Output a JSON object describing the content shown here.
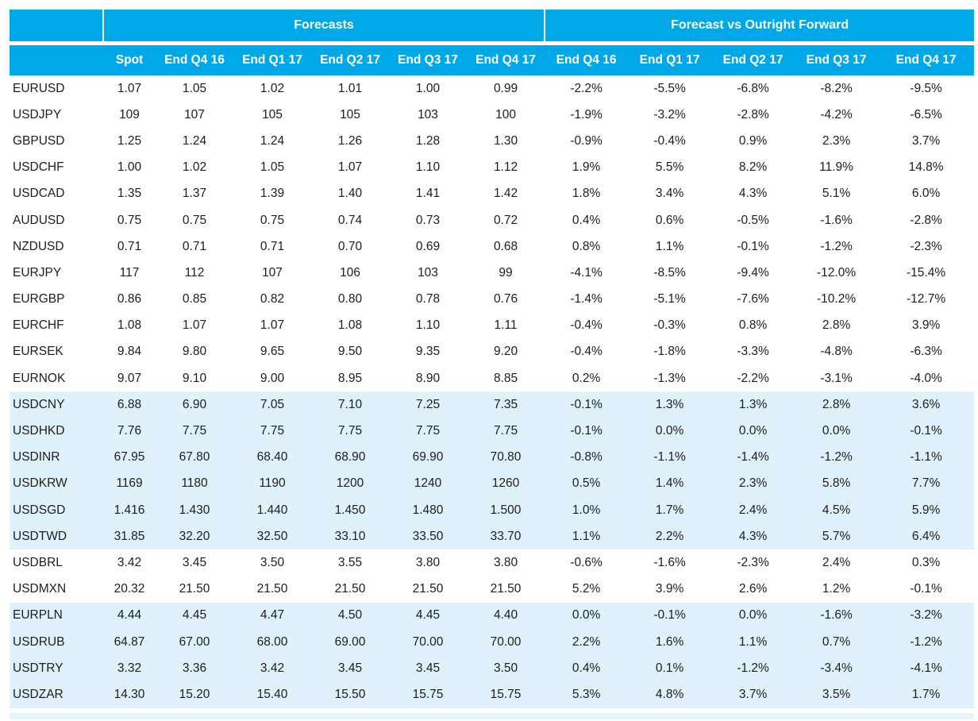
{
  "table": {
    "group_headers": [
      {
        "label": "Forecasts",
        "span": 6
      },
      {
        "label": "Forecast vs Outright Forward",
        "span": 5
      }
    ],
    "column_headers": {
      "pair": "",
      "forecasts": [
        "Spot",
        "End Q4 16",
        "End Q1 17",
        "End Q2 17",
        "End Q3 17",
        "End Q4 17"
      ],
      "vs_forward": [
        "End Q4 16",
        "End Q1 17",
        "End Q2 17",
        "End Q3 17",
        "End Q4 17"
      ]
    },
    "rows": [
      {
        "pair": "EURUSD",
        "forecasts": [
          "1.07",
          "1.05",
          "1.02",
          "1.01",
          "1.00",
          "0.99"
        ],
        "vs_forward": [
          "-2.2%",
          "-5.5%",
          "-6.8%",
          "-8.2%",
          "-9.5%"
        ],
        "highlight": false
      },
      {
        "pair": "USDJPY",
        "forecasts": [
          "109",
          "107",
          "105",
          "105",
          "103",
          "100"
        ],
        "vs_forward": [
          "-1.9%",
          "-3.2%",
          "-2.8%",
          "-4.2%",
          "-6.5%"
        ],
        "highlight": false
      },
      {
        "pair": "GBPUSD",
        "forecasts": [
          "1.25",
          "1.24",
          "1.24",
          "1.26",
          "1.28",
          "1.30"
        ],
        "vs_forward": [
          "-0.9%",
          "-0.4%",
          "0.9%",
          "2.3%",
          "3.7%"
        ],
        "highlight": false
      },
      {
        "pair": "USDCHF",
        "forecasts": [
          "1.00",
          "1.02",
          "1.05",
          "1.07",
          "1.10",
          "1.12"
        ],
        "vs_forward": [
          "1.9%",
          "5.5%",
          "8.2%",
          "11.9%",
          "14.8%"
        ],
        "highlight": false
      },
      {
        "pair": "USDCAD",
        "forecasts": [
          "1.35",
          "1.37",
          "1.39",
          "1.40",
          "1.41",
          "1.42"
        ],
        "vs_forward": [
          "1.8%",
          "3.4%",
          "4.3%",
          "5.1%",
          "6.0%"
        ],
        "highlight": false
      },
      {
        "pair": "AUDUSD",
        "forecasts": [
          "0.75",
          "0.75",
          "0.75",
          "0.74",
          "0.73",
          "0.72"
        ],
        "vs_forward": [
          "0.4%",
          "0.6%",
          "-0.5%",
          "-1.6%",
          "-2.8%"
        ],
        "highlight": false
      },
      {
        "pair": "NZDUSD",
        "forecasts": [
          "0.71",
          "0.71",
          "0.71",
          "0.70",
          "0.69",
          "0.68"
        ],
        "vs_forward": [
          "0.8%",
          "1.1%",
          "-0.1%",
          "-1.2%",
          "-2.3%"
        ],
        "highlight": false
      },
      {
        "pair": "EURJPY",
        "forecasts": [
          "117",
          "112",
          "107",
          "106",
          "103",
          "99"
        ],
        "vs_forward": [
          "-4.1%",
          "-8.5%",
          "-9.4%",
          "-12.0%",
          "-15.4%"
        ],
        "highlight": false
      },
      {
        "pair": "EURGBP",
        "forecasts": [
          "0.86",
          "0.85",
          "0.82",
          "0.80",
          "0.78",
          "0.76"
        ],
        "vs_forward": [
          "-1.4%",
          "-5.1%",
          "-7.6%",
          "-10.2%",
          "-12.7%"
        ],
        "highlight": false
      },
      {
        "pair": "EURCHF",
        "forecasts": [
          "1.08",
          "1.07",
          "1.07",
          "1.08",
          "1.10",
          "1.11"
        ],
        "vs_forward": [
          "-0.4%",
          "-0.3%",
          "0.8%",
          "2.8%",
          "3.9%"
        ],
        "highlight": false
      },
      {
        "pair": "EURSEK",
        "forecasts": [
          "9.84",
          "9.80",
          "9.65",
          "9.50",
          "9.35",
          "9.20"
        ],
        "vs_forward": [
          "-0.4%",
          "-1.8%",
          "-3.3%",
          "-4.8%",
          "-6.3%"
        ],
        "highlight": false
      },
      {
        "pair": "EURNOK",
        "forecasts": [
          "9.07",
          "9.10",
          "9.00",
          "8.95",
          "8.90",
          "8.85"
        ],
        "vs_forward": [
          "0.2%",
          "-1.3%",
          "-2.2%",
          "-3.1%",
          "-4.0%"
        ],
        "highlight": false
      },
      {
        "pair": "USDCNY",
        "forecasts": [
          "6.88",
          "6.90",
          "7.05",
          "7.10",
          "7.25",
          "7.35"
        ],
        "vs_forward": [
          "-0.1%",
          "1.3%",
          "1.3%",
          "2.8%",
          "3.6%"
        ],
        "highlight": true
      },
      {
        "pair": "USDHKD",
        "forecasts": [
          "7.76",
          "7.75",
          "7.75",
          "7.75",
          "7.75",
          "7.75"
        ],
        "vs_forward": [
          "-0.1%",
          "0.0%",
          "0.0%",
          "0.0%",
          "-0.1%"
        ],
        "highlight": true
      },
      {
        "pair": "USDINR",
        "forecasts": [
          "67.95",
          "67.80",
          "68.40",
          "68.90",
          "69.90",
          "70.80"
        ],
        "vs_forward": [
          "-0.8%",
          "-1.1%",
          "-1.4%",
          "-1.2%",
          "-1.1%"
        ],
        "highlight": true
      },
      {
        "pair": "USDKRW",
        "forecasts": [
          "1169",
          "1180",
          "1190",
          "1200",
          "1240",
          "1260"
        ],
        "vs_forward": [
          "0.5%",
          "1.4%",
          "2.3%",
          "5.8%",
          "7.7%"
        ],
        "highlight": true
      },
      {
        "pair": "USDSGD",
        "forecasts": [
          "1.416",
          "1.430",
          "1.440",
          "1.450",
          "1.480",
          "1.500"
        ],
        "vs_forward": [
          "1.0%",
          "1.7%",
          "2.4%",
          "4.5%",
          "5.9%"
        ],
        "highlight": true
      },
      {
        "pair": "USDTWD",
        "forecasts": [
          "31.85",
          "32.20",
          "32.50",
          "33.10",
          "33.50",
          "33.70"
        ],
        "vs_forward": [
          "1.1%",
          "2.2%",
          "4.3%",
          "5.7%",
          "6.4%"
        ],
        "highlight": true
      },
      {
        "pair": "USDBRL",
        "forecasts": [
          "3.42",
          "3.45",
          "3.50",
          "3.55",
          "3.80",
          "3.80"
        ],
        "vs_forward": [
          "-0.6%",
          "-1.6%",
          "-2.3%",
          "2.4%",
          "0.3%"
        ],
        "highlight": false
      },
      {
        "pair": "USDMXN",
        "forecasts": [
          "20.32",
          "21.50",
          "21.50",
          "21.50",
          "21.50",
          "21.50"
        ],
        "vs_forward": [
          "5.2%",
          "3.9%",
          "2.6%",
          "1.2%",
          "-0.1%"
        ],
        "highlight": false
      },
      {
        "pair": "EURPLN",
        "forecasts": [
          "4.44",
          "4.45",
          "4.47",
          "4.50",
          "4.45",
          "4.40"
        ],
        "vs_forward": [
          "0.0%",
          "-0.1%",
          "0.0%",
          "-1.6%",
          "-3.2%"
        ],
        "highlight": true
      },
      {
        "pair": "USDRUB",
        "forecasts": [
          "64.87",
          "67.00",
          "68.00",
          "69.00",
          "70.00",
          "70.00"
        ],
        "vs_forward": [
          "2.2%",
          "1.6%",
          "1.1%",
          "0.7%",
          "-1.2%"
        ],
        "highlight": true
      },
      {
        "pair": "USDTRY",
        "forecasts": [
          "3.32",
          "3.36",
          "3.42",
          "3.45",
          "3.45",
          "3.50"
        ],
        "vs_forward": [
          "0.4%",
          "0.1%",
          "-1.2%",
          "-3.4%",
          "-4.1%"
        ],
        "highlight": true
      },
      {
        "pair": "USDZAR",
        "forecasts": [
          "14.30",
          "15.20",
          "15.40",
          "15.50",
          "15.75",
          "15.75"
        ],
        "vs_forward": [
          "5.3%",
          "4.8%",
          "3.7%",
          "3.5%",
          "1.7%"
        ],
        "highlight": true
      }
    ]
  },
  "colors": {
    "header_blue": "#00a8e8",
    "row_highlight_blue": "#dff1fb",
    "footer_strip_blue": "#e9f5fc",
    "body_text": "#1d1d1b",
    "header_text": "#ffffff"
  }
}
